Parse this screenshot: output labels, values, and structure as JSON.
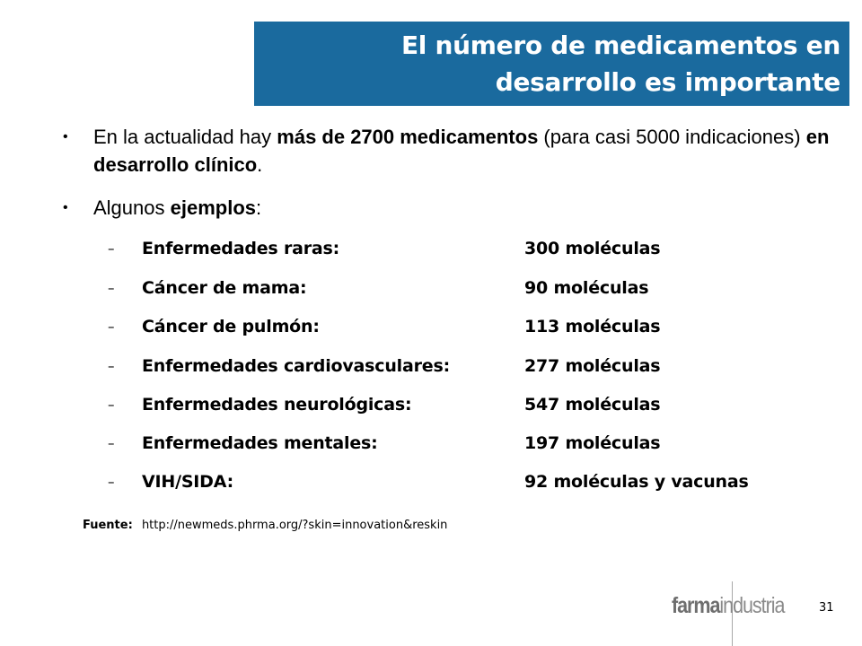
{
  "title": {
    "line1": "El número de medicamentos en",
    "line2": "desarrollo es importante"
  },
  "bullets": [
    {
      "parts": [
        {
          "t": "En la actualidad hay ",
          "b": false
        },
        {
          "t": "más de 2700 medicamentos",
          "b": true
        },
        {
          "t": " (para casi 5000 indicaciones) ",
          "b": false
        },
        {
          "t": "en desarrollo clínico",
          "b": true
        },
        {
          "t": ".",
          "b": false
        }
      ]
    },
    {
      "parts": [
        {
          "t": "Algunos ",
          "b": false
        },
        {
          "t": "ejemplos",
          "b": true
        },
        {
          "t": ":",
          "b": false
        }
      ]
    }
  ],
  "bullet_symbol": "•",
  "dash_symbol": "–",
  "examples": [
    {
      "category": "Enfermedades raras:",
      "value": "300 moléculas"
    },
    {
      "category": "Cáncer de mama:",
      "value": "90 moléculas"
    },
    {
      "category": "Cáncer de pulmón:",
      "value": "113 moléculas"
    },
    {
      "category": "Enfermedades cardiovasculares:",
      "value": "277 moléculas"
    },
    {
      "category": "Enfermedades neurológicas:",
      "value": "547 moléculas"
    },
    {
      "category": "Enfermedades mentales:",
      "value": "197 moléculas"
    },
    {
      "category": "VIH/SIDA:",
      "value": "92 moléculas y vacunas"
    }
  ],
  "source": {
    "label": "Fuente:",
    "url": "http://newmeds.phrma.org/?skin=innovation&reskin"
  },
  "logo": {
    "bold": "farma",
    "regular": "industria"
  },
  "page_number": "31",
  "colors": {
    "title_bg": "#1a6a9e",
    "title_text": "#ffffff"
  }
}
